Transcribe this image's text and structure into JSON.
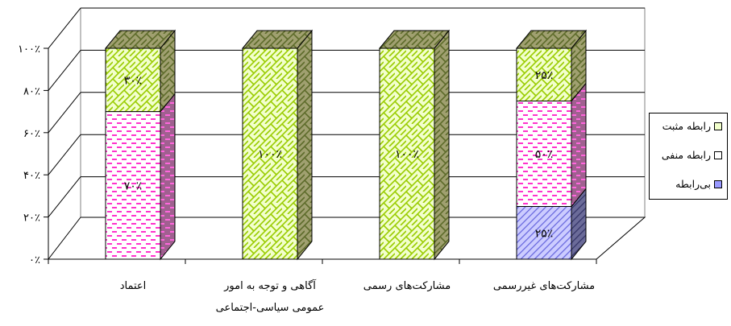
{
  "chart_data": {
    "type": "bar",
    "stacked": true,
    "percent_stacked": true,
    "three_d": true,
    "categories": [
      "اعتماد",
      "آگاهی و توجه به امور\nعمومی سیاسی-اجتماعی",
      "مشارکت‌های رسمی",
      "مشارکت‌های غیررسمی"
    ],
    "series": [
      {
        "name": "بی‌رابطه",
        "values": [
          0,
          0,
          0,
          25
        ],
        "labels": [
          "",
          "",
          "",
          "۲۵٪"
        ],
        "color": "#9999ff",
        "pattern": "diagonal"
      },
      {
        "name": "رابطه منفی",
        "values": [
          70,
          0,
          0,
          50
        ],
        "labels": [
          "۷۰٪",
          "",
          "",
          "۵۰٪"
        ],
        "color": "#ff33cc",
        "pattern": "dashes"
      },
      {
        "name": "رابطه مثبت",
        "values": [
          30,
          100,
          100,
          25
        ],
        "labels": [
          "۳۰٪",
          "۱۰۰٪",
          "۱۰۰٪",
          "۲۵٪"
        ],
        "color": "#99cc00",
        "pattern": "brick"
      }
    ],
    "yticks": [
      "۰٪",
      "۲۰٪",
      "۴۰٪",
      "۶۰٪",
      "۸۰٪",
      "۱۰۰٪"
    ],
    "ylim": [
      0,
      100
    ],
    "grid": true,
    "legend_position": "right"
  }
}
